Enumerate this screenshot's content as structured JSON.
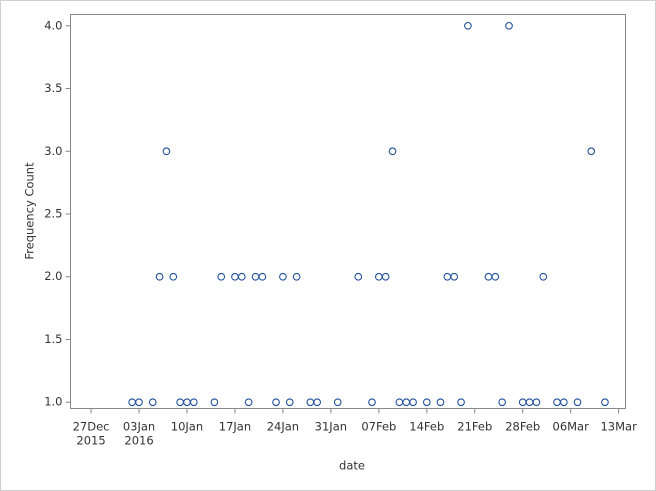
{
  "chart_data": {
    "type": "scatter",
    "x_label": "date",
    "y_label": "Frequency Count",
    "x": [
      "2016-01-02",
      "2016-01-03",
      "2016-01-05",
      "2016-01-06",
      "2016-01-07",
      "2016-01-08",
      "2016-01-09",
      "2016-01-10",
      "2016-01-11",
      "2016-01-14",
      "2016-01-15",
      "2016-01-17",
      "2016-01-18",
      "2016-01-19",
      "2016-01-20",
      "2016-01-21",
      "2016-01-23",
      "2016-01-24",
      "2016-01-25",
      "2016-01-26",
      "2016-01-28",
      "2016-01-29",
      "2016-02-01",
      "2016-02-04",
      "2016-02-06",
      "2016-02-07",
      "2016-02-08",
      "2016-02-09",
      "2016-02-10",
      "2016-02-11",
      "2016-02-12",
      "2016-02-14",
      "2016-02-16",
      "2016-02-17",
      "2016-02-18",
      "2016-02-19",
      "2016-02-20",
      "2016-02-23",
      "2016-02-24",
      "2016-02-25",
      "2016-02-26",
      "2016-02-28",
      "2016-02-29",
      "2016-03-01",
      "2016-03-02",
      "2016-03-04",
      "2016-03-05",
      "2016-03-07",
      "2016-03-09",
      "2016-03-11"
    ],
    "values": [
      1,
      1,
      1,
      2,
      3,
      2,
      1,
      1,
      1,
      1,
      2,
      2,
      2,
      1,
      2,
      2,
      1,
      2,
      1,
      2,
      1,
      1,
      1,
      2,
      1,
      2,
      2,
      3,
      1,
      1,
      1,
      1,
      1,
      2,
      2,
      1,
      4,
      2,
      2,
      1,
      4,
      1,
      1,
      1,
      2,
      1,
      1,
      1,
      3,
      1
    ],
    "color": "#1f4f9a",
    "xlim": [
      "2015-12-24",
      "2016-03-14"
    ],
    "xticks": [
      {
        "value": "2015-12-27",
        "label": "27Dec\n2015"
      },
      {
        "value": "2016-01-03",
        "label": "03Jan\n2016"
      },
      {
        "value": "2016-01-10",
        "label": "10Jan"
      },
      {
        "value": "2016-01-17",
        "label": "17Jan"
      },
      {
        "value": "2016-01-24",
        "label": "24Jan"
      },
      {
        "value": "2016-01-31",
        "label": "31Jan"
      },
      {
        "value": "2016-02-07",
        "label": "07Feb"
      },
      {
        "value": "2016-02-14",
        "label": "14Feb"
      },
      {
        "value": "2016-02-21",
        "label": "21Feb"
      },
      {
        "value": "2016-02-28",
        "label": "28Feb"
      },
      {
        "value": "2016-03-06",
        "label": "06Mar"
      },
      {
        "value": "2016-03-13",
        "label": "13Mar"
      }
    ],
    "ylim": [
      0.95,
      4.09
    ],
    "yticks": [
      {
        "value": 1,
        "label": "1.0"
      },
      {
        "value": 1.5,
        "label": "1.5"
      },
      {
        "value": 2,
        "label": "2.0"
      },
      {
        "value": 2.5,
        "label": "2.5"
      },
      {
        "value": 3,
        "label": "3.0"
      },
      {
        "value": 3.5,
        "label": "3.5"
      },
      {
        "value": 4,
        "label": "4.0"
      }
    ],
    "grid": false
  }
}
